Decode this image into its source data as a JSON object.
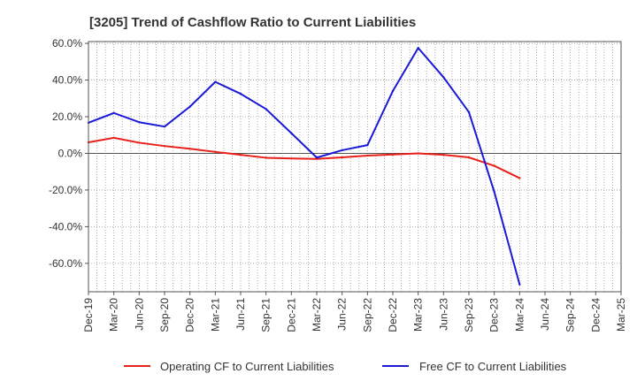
{
  "chart_data": {
    "type": "line",
    "title": "[3205]  Trend of Cashflow Ratio to Current Liabilities",
    "xlabel": "",
    "ylabel": "",
    "x": [
      "Dec-19",
      "Mar-20",
      "Jun-20",
      "Sep-20",
      "Dec-20",
      "Mar-21",
      "Jun-21",
      "Sep-21",
      "Dec-21",
      "Mar-22",
      "Jun-22",
      "Sep-22",
      "Dec-22",
      "Mar-23",
      "Jun-23",
      "Sep-23",
      "Dec-23",
      "Mar-24",
      "Jun-24",
      "Sep-24",
      "Dec-24",
      "Mar-25"
    ],
    "y_ticks": [
      "60.0%",
      "40.0%",
      "20.0%",
      "0.0%",
      "-20.0%",
      "-40.0%",
      "-60.0%"
    ],
    "y_tick_values": [
      60,
      40,
      20,
      0,
      -20,
      -40,
      -60
    ],
    "ylim": [
      -75.5,
      61
    ],
    "grid": true,
    "legend_position": "bottom",
    "series": [
      {
        "name": "Operating CF to Current Liabilities",
        "color": "#e8201a",
        "values": [
          6.0,
          8.5,
          5.8,
          4.0,
          2.5,
          0.8,
          -0.8,
          -2.4,
          -2.8,
          -3.0,
          -2.2,
          -1.2,
          -0.6,
          0.0,
          -0.8,
          -2.2,
          -6.8,
          -13.5,
          null,
          null,
          null,
          null
        ]
      },
      {
        "name": "Free CF to Current Liabilities",
        "color": "#1a1ad6",
        "values": [
          16.7,
          22.0,
          17.0,
          14.6,
          25.5,
          39.0,
          32.5,
          24.2,
          11.0,
          -2.3,
          1.7,
          4.5,
          34.0,
          57.5,
          41.5,
          22.5,
          -21.0,
          -71.5,
          null,
          null,
          null,
          null
        ]
      }
    ]
  }
}
